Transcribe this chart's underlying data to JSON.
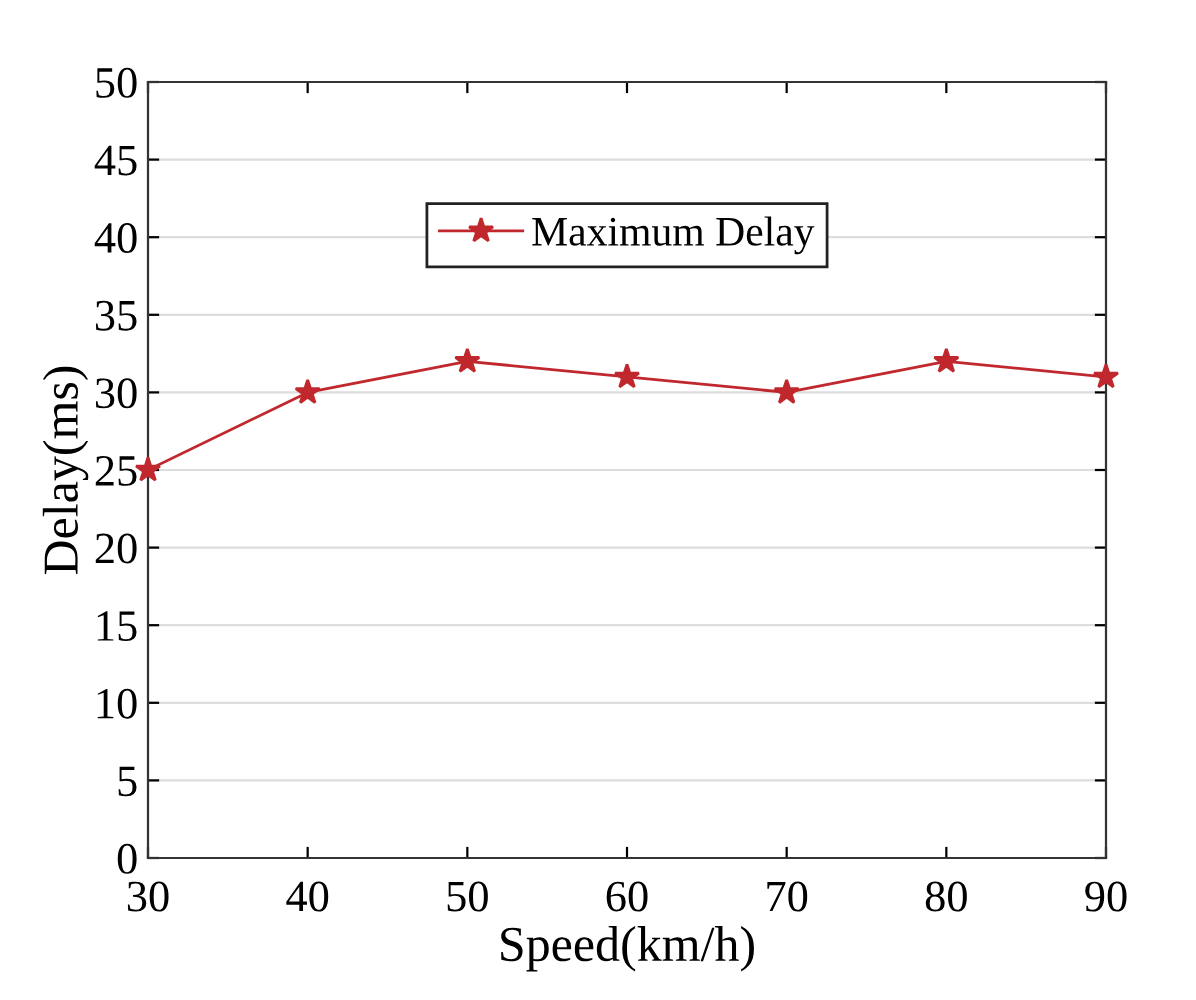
{
  "chart_data": {
    "type": "line",
    "xlabel": "Speed(km/h)",
    "ylabel": "Delay(ms)",
    "x": [
      30,
      40,
      50,
      60,
      70,
      80,
      90
    ],
    "series": [
      {
        "name": "Maximum Delay",
        "color": "#c0282d",
        "values": [
          25,
          30,
          32,
          31,
          30,
          32,
          31
        ]
      }
    ],
    "xlim": [
      30,
      90
    ],
    "xticks": [
      30,
      40,
      50,
      60,
      70,
      80,
      90
    ],
    "ylim": [
      0,
      50
    ],
    "yticks": [
      0,
      5,
      10,
      15,
      20,
      25,
      30,
      35,
      40,
      45,
      50
    ],
    "grid": "y",
    "legend": "top",
    "marker": "star",
    "line_style": "solid"
  }
}
